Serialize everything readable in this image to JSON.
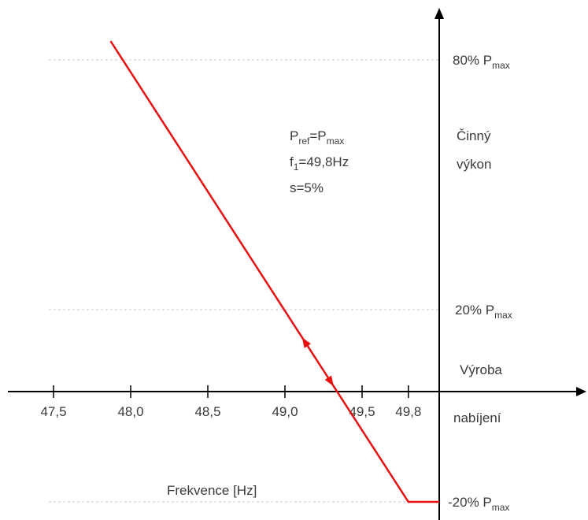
{
  "chart_data": {
    "type": "line",
    "title": "",
    "xlabel": "Frekvence [Hz]",
    "ylabel": [
      "Činný",
      "výkon"
    ],
    "x_ticks": [
      {
        "value": 47.5,
        "label": "47,5"
      },
      {
        "value": 48.0,
        "label": "48,0"
      },
      {
        "value": 48.5,
        "label": "48,5"
      },
      {
        "value": 49.0,
        "label": "49,0"
      },
      {
        "value": 49.5,
        "label": "49,5"
      },
      {
        "value": 49.8,
        "label": "49,8"
      }
    ],
    "y_ticks": [
      {
        "value": 80,
        "label": "80% P",
        "sub": "max"
      },
      {
        "value": 20,
        "label": "20% P",
        "sub": "max"
      },
      {
        "value": -20,
        "label": "-20% P",
        "sub": "max"
      }
    ],
    "grid": true,
    "axis_cross": {
      "x": 50.0,
      "y": 0
    },
    "series": [
      {
        "color": "#e81010",
        "points": [
          [
            47.87,
            84.5
          ],
          [
            49.8,
            -20
          ],
          [
            50.0,
            -20
          ]
        ]
      }
    ],
    "annotations": {
      "above_axis": "Výroba",
      "below_axis": "nabíjení",
      "params": [
        [
          {
            "t": "P"
          },
          {
            "t": "ref",
            "sub": true
          },
          {
            "t": "=P"
          },
          {
            "t": "max",
            "sub": true
          }
        ],
        [
          {
            "t": "f"
          },
          {
            "t": "1",
            "sub": true
          },
          {
            "t": "=49,8Hz"
          }
        ],
        [
          {
            "t": "s=5%"
          }
        ]
      ]
    }
  }
}
